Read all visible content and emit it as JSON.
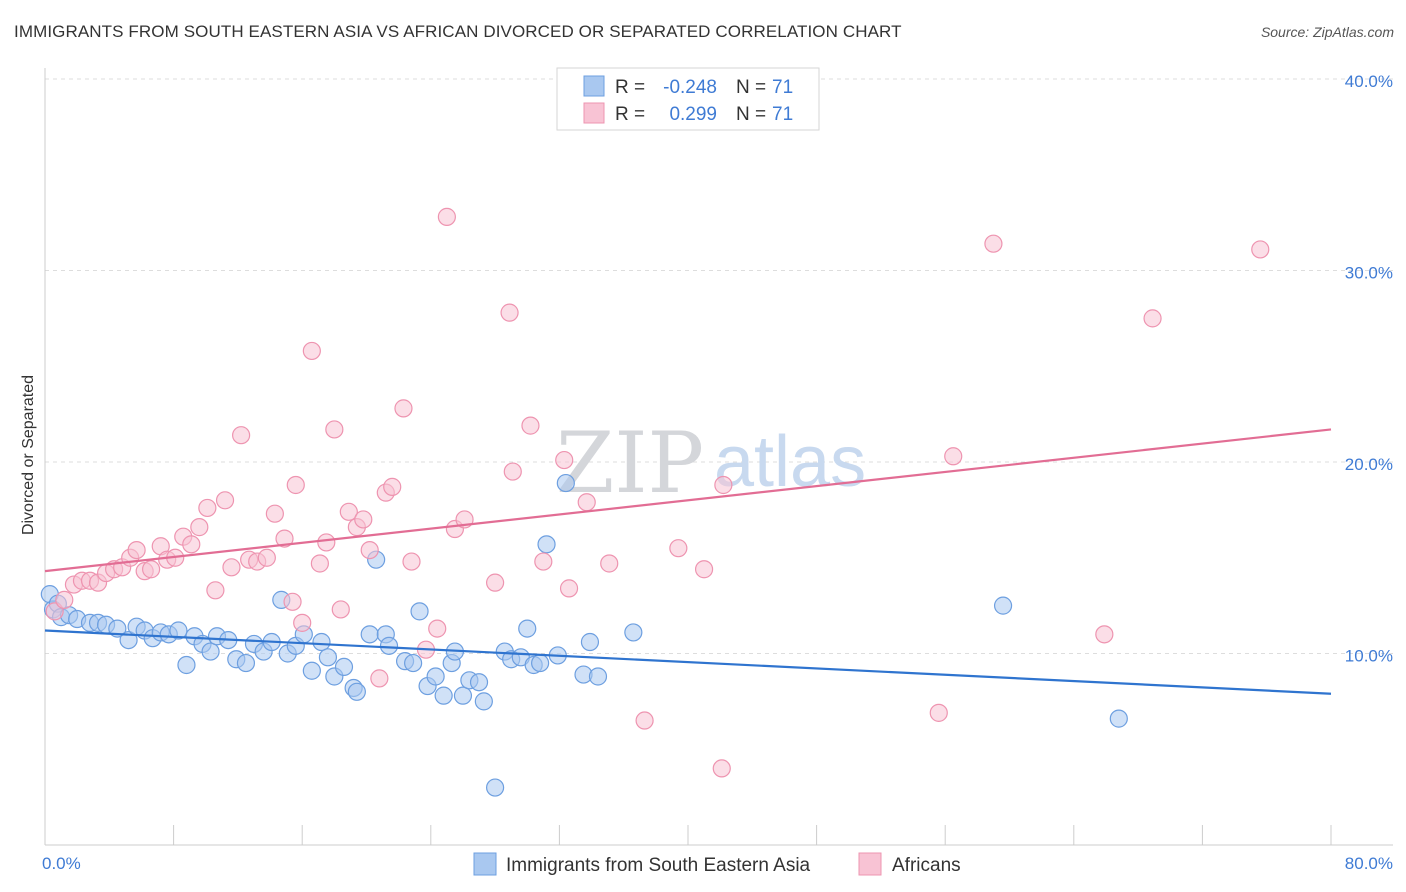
{
  "title": "IMMIGRANTS FROM SOUTH EASTERN ASIA VS AFRICAN DIVORCED OR SEPARATED CORRELATION CHART",
  "source": "Source: ZipAtlas.com",
  "watermark": {
    "zip": "ZIP",
    "atlas": "atlas"
  },
  "chart_data": {
    "type": "scatter",
    "ylabel": "Divorced or Separated",
    "xlim": [
      0,
      80
    ],
    "ylim": [
      0,
      40
    ],
    "x_tick_labels": [
      {
        "value": 0,
        "label": "0.0%"
      },
      {
        "value": 80,
        "label": "80.0%"
      }
    ],
    "y_tick_labels": [
      {
        "value": 10,
        "label": "10.0%"
      },
      {
        "value": 20,
        "label": "20.0%"
      },
      {
        "value": 30,
        "label": "30.0%"
      },
      {
        "value": 40,
        "label": "40.0%"
      }
    ],
    "grid": "horizontal dashed",
    "legend_top": [
      {
        "r_label": "R =",
        "r_value": "-0.248",
        "n_label": "N =",
        "n_value": "71"
      },
      {
        "r_label": "R =",
        "r_value": "0.299",
        "n_label": "N =",
        "n_value": "71"
      }
    ],
    "series": [
      {
        "name": "Immigrants from South Eastern Asia",
        "color": "#6d9fe0",
        "fill": "#a9c8f0",
        "trend": {
          "x": [
            0,
            80
          ],
          "y": [
            11.2,
            7.9
          ],
          "color": "#2f74cf"
        },
        "points": [
          [
            0.3,
            13.1
          ],
          [
            0.5,
            12.3
          ],
          [
            0.8,
            12.6
          ],
          [
            1.0,
            11.9
          ],
          [
            1.5,
            12.0
          ],
          [
            2.0,
            11.8
          ],
          [
            2.8,
            11.6
          ],
          [
            3.3,
            11.6
          ],
          [
            3.8,
            11.5
          ],
          [
            4.5,
            11.3
          ],
          [
            5.2,
            10.7
          ],
          [
            5.7,
            11.4
          ],
          [
            6.2,
            11.2
          ],
          [
            6.7,
            10.8
          ],
          [
            7.2,
            11.1
          ],
          [
            7.7,
            11.0
          ],
          [
            8.3,
            11.2
          ],
          [
            8.8,
            9.4
          ],
          [
            9.3,
            10.9
          ],
          [
            9.8,
            10.5
          ],
          [
            10.3,
            10.1
          ],
          [
            10.7,
            10.9
          ],
          [
            11.4,
            10.7
          ],
          [
            11.9,
            9.7
          ],
          [
            12.5,
            9.5
          ],
          [
            13.0,
            10.5
          ],
          [
            13.6,
            10.1
          ],
          [
            14.1,
            10.6
          ],
          [
            14.7,
            12.8
          ],
          [
            15.1,
            10.0
          ],
          [
            15.6,
            10.4
          ],
          [
            16.1,
            11.0
          ],
          [
            16.6,
            9.1
          ],
          [
            17.2,
            10.6
          ],
          [
            17.6,
            9.8
          ],
          [
            18.0,
            8.8
          ],
          [
            18.6,
            9.3
          ],
          [
            19.2,
            8.2
          ],
          [
            19.4,
            8.0
          ],
          [
            20.2,
            11.0
          ],
          [
            20.6,
            14.9
          ],
          [
            21.2,
            11.0
          ],
          [
            21.4,
            10.4
          ],
          [
            22.4,
            9.6
          ],
          [
            22.9,
            9.5
          ],
          [
            23.3,
            12.2
          ],
          [
            23.8,
            8.3
          ],
          [
            24.3,
            8.8
          ],
          [
            24.8,
            7.8
          ],
          [
            25.3,
            9.5
          ],
          [
            25.5,
            10.1
          ],
          [
            26.0,
            7.8
          ],
          [
            26.4,
            8.6
          ],
          [
            27.0,
            8.5
          ],
          [
            27.3,
            7.5
          ],
          [
            28.0,
            3.0
          ],
          [
            28.6,
            10.1
          ],
          [
            29.0,
            9.7
          ],
          [
            29.6,
            9.8
          ],
          [
            30.0,
            11.3
          ],
          [
            30.4,
            9.4
          ],
          [
            30.8,
            9.5
          ],
          [
            31.2,
            15.7
          ],
          [
            31.9,
            9.9
          ],
          [
            32.4,
            18.9
          ],
          [
            33.5,
            8.9
          ],
          [
            33.9,
            10.6
          ],
          [
            34.4,
            8.8
          ],
          [
            36.6,
            11.1
          ],
          [
            59.6,
            12.5
          ],
          [
            66.8,
            6.6
          ]
        ]
      },
      {
        "name": "Africans",
        "color": "#ee94b0",
        "fill": "#f8c3d4",
        "trend": {
          "x": [
            0,
            80
          ],
          "y": [
            14.3,
            21.7
          ],
          "color": "#e26d94"
        },
        "points": [
          [
            0.6,
            12.2
          ],
          [
            1.2,
            12.8
          ],
          [
            1.8,
            13.6
          ],
          [
            2.3,
            13.8
          ],
          [
            2.8,
            13.8
          ],
          [
            3.3,
            13.7
          ],
          [
            3.8,
            14.2
          ],
          [
            4.3,
            14.4
          ],
          [
            4.8,
            14.5
          ],
          [
            5.3,
            15.0
          ],
          [
            5.7,
            15.4
          ],
          [
            6.2,
            14.3
          ],
          [
            6.6,
            14.4
          ],
          [
            7.2,
            15.6
          ],
          [
            7.6,
            14.9
          ],
          [
            8.1,
            15.0
          ],
          [
            8.6,
            16.1
          ],
          [
            9.1,
            15.7
          ],
          [
            9.6,
            16.6
          ],
          [
            10.1,
            17.6
          ],
          [
            10.6,
            13.3
          ],
          [
            11.2,
            18.0
          ],
          [
            11.6,
            14.5
          ],
          [
            12.2,
            21.4
          ],
          [
            12.7,
            14.9
          ],
          [
            13.2,
            14.8
          ],
          [
            13.8,
            15.0
          ],
          [
            14.3,
            17.3
          ],
          [
            14.9,
            16.0
          ],
          [
            15.4,
            12.7
          ],
          [
            15.6,
            18.8
          ],
          [
            16.0,
            11.6
          ],
          [
            16.6,
            25.8
          ],
          [
            17.1,
            14.7
          ],
          [
            17.5,
            15.8
          ],
          [
            18.0,
            21.7
          ],
          [
            18.4,
            12.3
          ],
          [
            18.9,
            17.4
          ],
          [
            19.4,
            16.6
          ],
          [
            19.8,
            17.0
          ],
          [
            20.2,
            15.4
          ],
          [
            20.8,
            8.7
          ],
          [
            21.2,
            18.4
          ],
          [
            21.6,
            18.7
          ],
          [
            22.3,
            22.8
          ],
          [
            22.8,
            14.8
          ],
          [
            23.7,
            10.2
          ],
          [
            24.4,
            11.3
          ],
          [
            25.0,
            32.8
          ],
          [
            25.5,
            16.5
          ],
          [
            26.1,
            17.0
          ],
          [
            28.0,
            13.7
          ],
          [
            28.9,
            27.8
          ],
          [
            29.1,
            19.5
          ],
          [
            30.2,
            21.9
          ],
          [
            31.0,
            14.8
          ],
          [
            32.3,
            20.1
          ],
          [
            32.6,
            13.4
          ],
          [
            33.7,
            17.9
          ],
          [
            35.1,
            14.7
          ],
          [
            37.3,
            6.5
          ],
          [
            39.4,
            15.5
          ],
          [
            41.0,
            14.4
          ],
          [
            42.1,
            4.0
          ],
          [
            42.2,
            18.8
          ],
          [
            55.6,
            6.9
          ],
          [
            56.5,
            20.3
          ],
          [
            59.0,
            31.4
          ],
          [
            65.9,
            11.0
          ],
          [
            68.9,
            27.5
          ],
          [
            75.6,
            31.1
          ]
        ]
      }
    ]
  }
}
